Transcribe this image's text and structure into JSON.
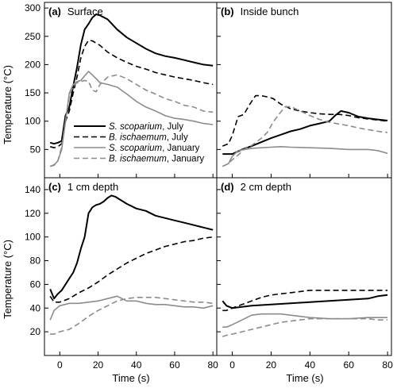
{
  "legend": [
    {
      "species": "S. scoparium",
      "month": ", July"
    },
    {
      "species": "B. ischaemum",
      "month": ", July"
    },
    {
      "species": "S. scoparium",
      "month": ", January"
    },
    {
      "species": "B. ischaemum",
      "month": ", January"
    }
  ],
  "series_style": [
    {
      "color": "#000000",
      "dash": "solid",
      "width": 2.0
    },
    {
      "color": "#000000",
      "dash": "dashed",
      "width": 1.6
    },
    {
      "color": "#8c8c8c",
      "dash": "solid",
      "width": 1.6
    },
    {
      "color": "#8c8c8c",
      "dash": "dashed",
      "width": 1.6
    }
  ],
  "y_axis_label": "Temperature (°C)",
  "x_axis_label": "Time (s)",
  "chart_data": [
    {
      "type": "line",
      "letter": "(a)",
      "title": "Surface",
      "xlim": [
        -8,
        82
      ],
      "ylim": [
        0,
        310
      ],
      "xticks": [
        0,
        20,
        40,
        60,
        80
      ],
      "yticks": [
        50,
        100,
        150,
        200,
        250,
        300
      ],
      "grid": false,
      "legend_position": "bottom-right",
      "series": [
        {
          "x": [
            -5,
            -3,
            -1,
            1,
            3,
            5,
            7,
            9,
            11,
            13,
            15,
            17,
            19,
            21,
            25,
            30,
            35,
            40,
            45,
            50,
            55,
            60,
            65,
            70,
            75,
            80
          ],
          "y": [
            62,
            60,
            62,
            65,
            110,
            125,
            162,
            195,
            235,
            262,
            272,
            283,
            289,
            287,
            280,
            262,
            248,
            238,
            228,
            220,
            215,
            212,
            208,
            204,
            200,
            198
          ]
        },
        {
          "x": [
            -5,
            -3,
            -1,
            1,
            3,
            5,
            7,
            9,
            11,
            13,
            15,
            17,
            19,
            21,
            25,
            30,
            35,
            40,
            45,
            50,
            55,
            60,
            65,
            70,
            75,
            80
          ],
          "y": [
            55,
            53,
            55,
            60,
            100,
            118,
            150,
            178,
            212,
            232,
            243,
            242,
            238,
            234,
            222,
            212,
            204,
            197,
            192,
            186,
            182,
            178,
            175,
            172,
            168,
            165
          ]
        },
        {
          "x": [
            -5,
            -3,
            -1,
            1,
            3,
            5,
            7,
            9,
            11,
            13,
            15,
            17,
            19,
            21,
            25,
            30,
            35,
            40,
            45,
            50,
            55,
            60,
            65,
            70,
            75,
            80
          ],
          "y": [
            20,
            22,
            30,
            50,
            100,
            150,
            165,
            170,
            172,
            180,
            188,
            182,
            175,
            168,
            165,
            160,
            148,
            135,
            125,
            118,
            110,
            105,
            103,
            100,
            96,
            94
          ]
        },
        {
          "x": [
            -5,
            -3,
            -1,
            1,
            3,
            5,
            7,
            9,
            11,
            13,
            15,
            17,
            19,
            21,
            25,
            30,
            35,
            40,
            45,
            50,
            55,
            60,
            65,
            70,
            75,
            80
          ],
          "y": [
            20,
            23,
            30,
            55,
            100,
            145,
            162,
            168,
            170,
            172,
            170,
            155,
            152,
            165,
            178,
            182,
            175,
            165,
            155,
            148,
            140,
            135,
            128,
            125,
            118,
            116
          ]
        }
      ]
    },
    {
      "type": "line",
      "letter": "(b)",
      "title": "Inside bunch",
      "xlim": [
        -8,
        82
      ],
      "ylim": [
        0,
        310
      ],
      "xticks": [
        0,
        20,
        40,
        60,
        80
      ],
      "yticks": [
        50,
        100,
        150,
        200,
        250,
        300
      ],
      "grid": false,
      "legend_position": "",
      "series": [
        {
          "x": [
            -5,
            0,
            5,
            10,
            15,
            20,
            25,
            30,
            35,
            40,
            45,
            50,
            53,
            56,
            60,
            65,
            70,
            75,
            80
          ],
          "y": [
            42,
            42,
            50,
            56,
            63,
            70,
            76,
            82,
            86,
            92,
            96,
            100,
            110,
            118,
            115,
            108,
            105,
            103,
            101
          ]
        },
        {
          "x": [
            -5,
            -2,
            0,
            3,
            6,
            9,
            12,
            15,
            18,
            21,
            25,
            30,
            35,
            40,
            45,
            50,
            55,
            60,
            65,
            70,
            75,
            80
          ],
          "y": [
            56,
            60,
            75,
            108,
            112,
            130,
            145,
            145,
            143,
            140,
            130,
            122,
            118,
            115,
            113,
            112,
            112,
            110,
            106,
            104,
            102,
            100
          ]
        },
        {
          "x": [
            -5,
            -2,
            0,
            3,
            6,
            10,
            15,
            20,
            25,
            30,
            40,
            50,
            60,
            70,
            75,
            80
          ],
          "y": [
            20,
            25,
            38,
            48,
            50,
            52,
            53,
            54,
            55,
            54,
            53,
            52,
            50,
            50,
            48,
            43
          ]
        },
        {
          "x": [
            -5,
            -2,
            0,
            3,
            6,
            9,
            12,
            15,
            18,
            21,
            24,
            27,
            30,
            35,
            40,
            45,
            50,
            55,
            60,
            65,
            70,
            75,
            80
          ],
          "y": [
            20,
            25,
            32,
            40,
            50,
            55,
            62,
            70,
            80,
            98,
            112,
            125,
            126,
            118,
            110,
            103,
            98,
            95,
            92,
            88,
            85,
            82,
            80
          ]
        }
      ]
    },
    {
      "type": "line",
      "letter": "(c)",
      "title": "1 cm depth",
      "xlim": [
        -8,
        82
      ],
      "ylim": [
        0,
        150
      ],
      "xticks": [
        0,
        20,
        40,
        60,
        80
      ],
      "yticks": [
        20,
        40,
        60,
        80,
        100,
        120,
        140
      ],
      "grid": false,
      "legend_position": "",
      "series": [
        {
          "x": [
            -5,
            -3,
            -1,
            1,
            3,
            5,
            7,
            9,
            11,
            13,
            15,
            17,
            19,
            21,
            23,
            25,
            27,
            29,
            31,
            35,
            40,
            45,
            50,
            55,
            60,
            65,
            70,
            75,
            80
          ],
          "y": [
            56,
            48,
            52,
            55,
            60,
            65,
            70,
            78,
            90,
            100,
            120,
            125,
            127,
            128,
            130,
            133,
            135,
            134,
            132,
            128,
            124,
            122,
            118,
            116,
            114,
            112,
            110,
            108,
            106
          ]
        },
        {
          "x": [
            -5,
            -3,
            0,
            5,
            10,
            15,
            20,
            25,
            30,
            35,
            40,
            45,
            50,
            55,
            60,
            65,
            70,
            75,
            80
          ],
          "y": [
            50,
            45,
            45,
            48,
            53,
            57,
            62,
            68,
            73,
            78,
            82,
            86,
            89,
            92,
            94,
            96,
            97,
            99,
            100
          ]
        },
        {
          "x": [
            -5,
            -3,
            0,
            5,
            10,
            15,
            20,
            25,
            30,
            35,
            40,
            45,
            50,
            55,
            60,
            65,
            70,
            75,
            80
          ],
          "y": [
            30,
            38,
            42,
            44,
            44,
            45,
            46,
            48,
            50,
            46,
            46,
            44,
            43,
            43,
            42,
            41,
            41,
            40,
            42
          ]
        },
        {
          "x": [
            -5,
            -3,
            0,
            5,
            10,
            15,
            20,
            25,
            30,
            35,
            40,
            45,
            50,
            55,
            60,
            65,
            70,
            75,
            80
          ],
          "y": [
            18,
            18,
            20,
            22,
            27,
            33,
            38,
            42,
            46,
            48,
            49,
            49,
            49,
            48,
            47,
            46,
            45,
            45,
            44
          ]
        }
      ]
    },
    {
      "type": "line",
      "letter": "(d)",
      "title": "2 cm depth",
      "xlim": [
        -8,
        82
      ],
      "ylim": [
        0,
        150
      ],
      "xticks": [
        0,
        20,
        40,
        60,
        80
      ],
      "yticks": [
        20,
        40,
        60,
        80,
        100,
        120,
        140
      ],
      "grid": false,
      "legend_position": "",
      "series": [
        {
          "x": [
            -5,
            -3,
            0,
            5,
            10,
            20,
            30,
            40,
            50,
            60,
            70,
            75,
            80
          ],
          "y": [
            46,
            42,
            40,
            41,
            42,
            43,
            44,
            45,
            46,
            47,
            48,
            50,
            51
          ]
        },
        {
          "x": [
            -5,
            -3,
            0,
            5,
            10,
            15,
            20,
            25,
            30,
            35,
            40,
            50,
            60,
            70,
            80
          ],
          "y": [
            38,
            38,
            40,
            43,
            46,
            49,
            51,
            52,
            53,
            54,
            55,
            55,
            55,
            55,
            55
          ]
        },
        {
          "x": [
            -5,
            -3,
            0,
            5,
            10,
            15,
            20,
            25,
            30,
            35,
            40,
            50,
            60,
            70,
            75,
            80
          ],
          "y": [
            24,
            24,
            26,
            30,
            34,
            35,
            35,
            35,
            34,
            33,
            32,
            31,
            31,
            32,
            32,
            32
          ]
        },
        {
          "x": [
            -5,
            -3,
            0,
            5,
            10,
            15,
            20,
            25,
            30,
            35,
            40,
            50,
            60,
            70,
            75,
            80
          ],
          "y": [
            16,
            17,
            18,
            20,
            22,
            24,
            26,
            28,
            29,
            30,
            31,
            31,
            31,
            31,
            30,
            30
          ]
        }
      ]
    }
  ]
}
